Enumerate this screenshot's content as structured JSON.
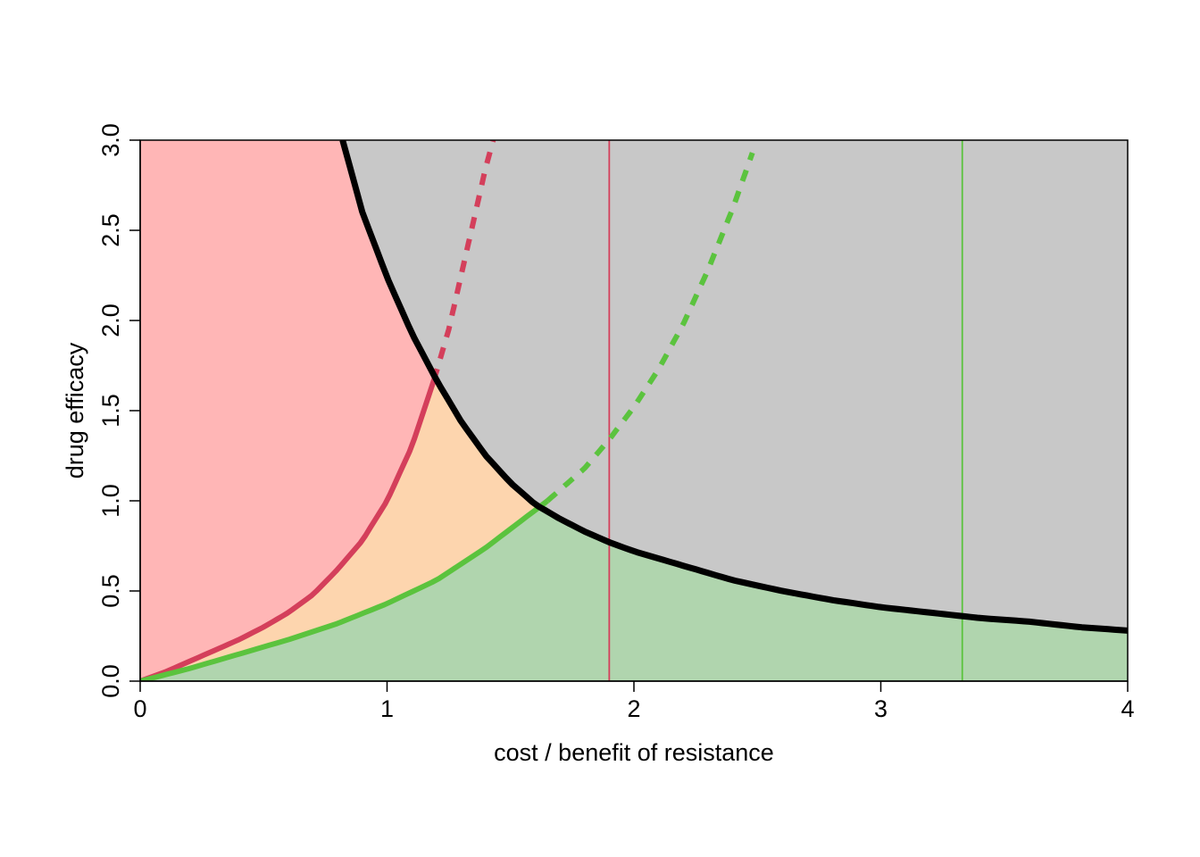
{
  "chart_data": {
    "type": "area",
    "title": "",
    "xlabel": "cost / benefit of resistance",
    "ylabel": "drug efficacy",
    "xlim": [
      0,
      4
    ],
    "ylim": [
      0,
      3
    ],
    "x_ticks": [
      "0",
      "1",
      "2",
      "3",
      "4"
    ],
    "y_ticks": [
      "0.0",
      "0.5",
      "1.0",
      "1.5",
      "2.0",
      "2.5",
      "3.0"
    ],
    "grid": false,
    "legend": "none",
    "regions": [
      {
        "color": "#ffb6b6",
        "description_color": "light red"
      },
      {
        "color": "#fdd5ae",
        "description_color": "light orange"
      },
      {
        "color": "#b0d5ae",
        "description_color": "light green"
      },
      {
        "color": "#c8c8c8",
        "description_color": "gray"
      }
    ],
    "series": [
      {
        "color": "#000000",
        "style": "solid",
        "x": [
          0.82,
          0.9,
          1.0,
          1.1,
          1.2,
          1.3,
          1.4,
          1.5,
          1.6,
          1.7,
          1.8,
          1.9,
          2.0,
          2.2,
          2.4,
          2.6,
          2.8,
          3.0,
          3.2,
          3.4,
          3.6,
          3.8,
          4.0
        ],
        "y": [
          3.0,
          2.6,
          2.24,
          1.93,
          1.67,
          1.44,
          1.25,
          1.1,
          0.98,
          0.9,
          0.83,
          0.77,
          0.72,
          0.64,
          0.56,
          0.5,
          0.45,
          0.41,
          0.38,
          0.35,
          0.33,
          0.3,
          0.28
        ]
      },
      {
        "color": "#d43f5b",
        "style": "solid",
        "x": [
          0.0,
          0.1,
          0.2,
          0.3,
          0.4,
          0.5,
          0.6,
          0.7,
          0.8,
          0.9,
          1.0,
          1.1,
          1.19
        ],
        "y": [
          0.0,
          0.05,
          0.11,
          0.17,
          0.23,
          0.3,
          0.38,
          0.48,
          0.62,
          0.78,
          1.0,
          1.3,
          1.67
        ]
      },
      {
        "color": "#d43f5b",
        "style": "dashed",
        "x": [
          1.19,
          1.25,
          1.3,
          1.35,
          1.4,
          1.43
        ],
        "y": [
          1.67,
          1.95,
          2.25,
          2.55,
          2.85,
          3.0
        ]
      },
      {
        "color": "#5bc33e",
        "style": "solid",
        "x": [
          0.0,
          0.2,
          0.4,
          0.6,
          0.8,
          1.0,
          1.2,
          1.4,
          1.65
        ],
        "y": [
          0.0,
          0.07,
          0.15,
          0.23,
          0.32,
          0.43,
          0.56,
          0.74,
          1.0
        ]
      },
      {
        "color": "#5bc33e",
        "style": "dashed",
        "x": [
          1.65,
          1.8,
          1.9,
          2.0,
          2.1,
          2.2,
          2.3,
          2.4,
          2.48
        ],
        "y": [
          1.0,
          1.18,
          1.34,
          1.52,
          1.73,
          1.98,
          2.28,
          2.62,
          2.93
        ]
      }
    ],
    "vertical_lines": [
      {
        "x": 1.9,
        "color": "#d43f5b"
      },
      {
        "x": 3.33,
        "color": "#5bc33e"
      }
    ]
  }
}
